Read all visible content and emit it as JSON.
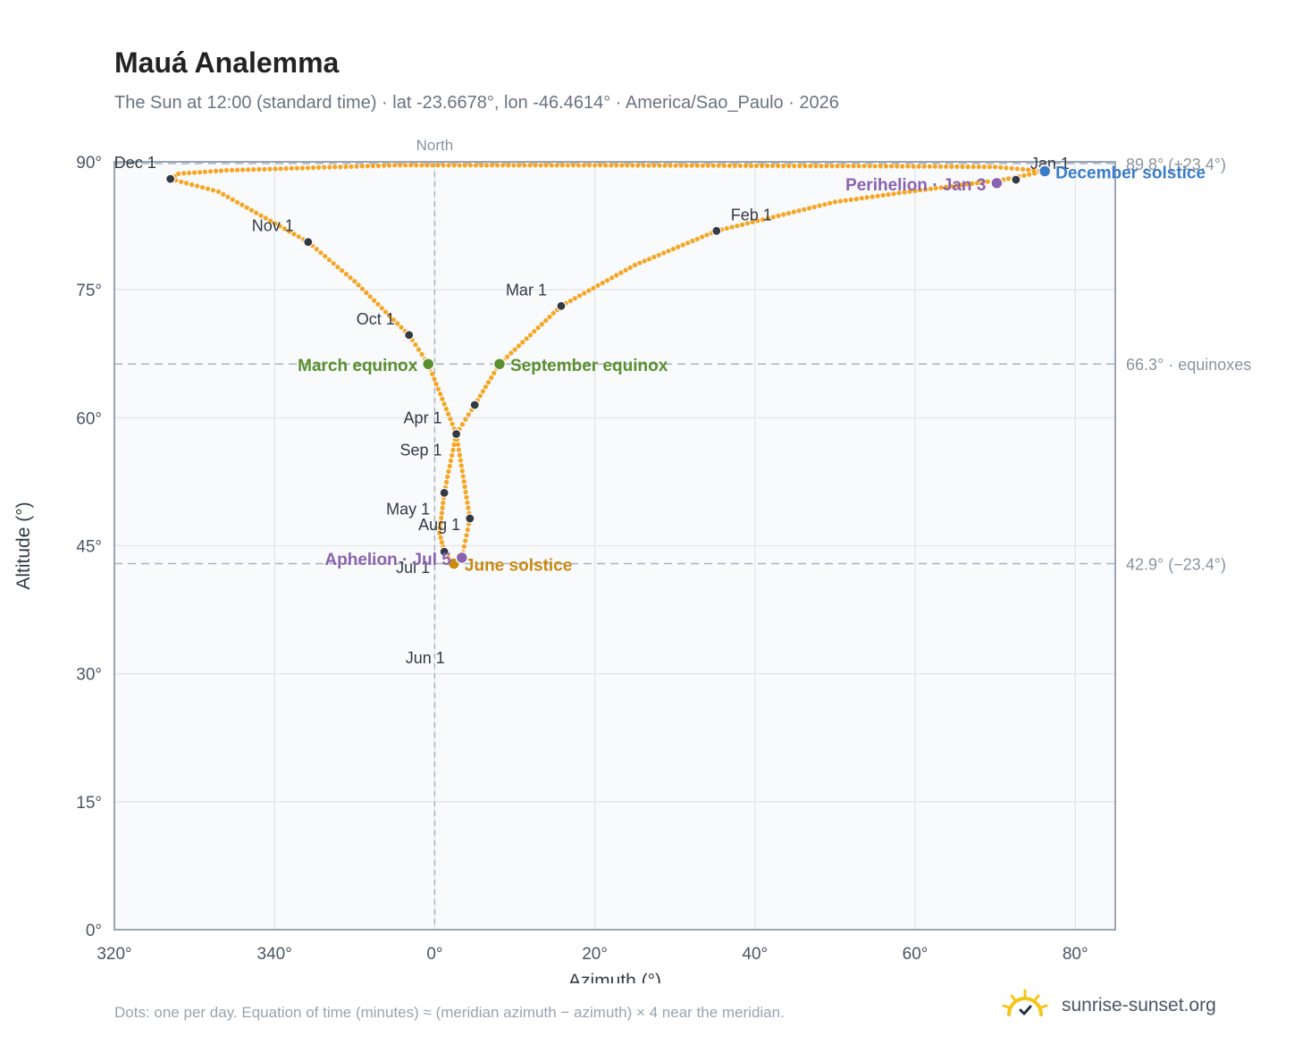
{
  "header": {
    "title": "Mauá Analemma",
    "subtitle": "The Sun at 12:00 (standard time) · lat -23.6678°, lon -46.4614° · America/Sao_Paulo · 2026"
  },
  "footer": {
    "note": "Dots: one per day. Equation of time (minutes) ≈ (meridian azimuth − azimuth) × 4 near the meridian.",
    "brand": "sunrise-sunset.org"
  },
  "colors": {
    "analemma": "#f5a623",
    "month_marker": "#333a44",
    "equinox": "#5a8f2e",
    "june_solstice": "#c98a12",
    "december_solstice": "#3a7bc8",
    "apsis": "#8a63b0",
    "brand_sun": "#f5c518"
  },
  "chart_data": {
    "type": "scatter",
    "xlabel": "Azimuth (°)",
    "ylabel": "Altitude (°)",
    "xlim": [
      320,
      85
    ],
    "ylim": [
      0,
      90
    ],
    "x_ticks": [
      "320°",
      "340°",
      "0°",
      "20°",
      "40°",
      "60°",
      "80°"
    ],
    "y_ticks": [
      "0°",
      "15°",
      "30°",
      "45°",
      "60°",
      "75°",
      "90°"
    ],
    "grid": true,
    "north_label": "North",
    "reference_lines": [
      {
        "altitude": 89.8,
        "label": "89.8° (+23.4°)"
      },
      {
        "altitude": 66.3,
        "label": "66.3° · equinoxes"
      },
      {
        "altitude": 42.9,
        "label": "42.9° (−23.4°)"
      }
    ],
    "analemma_path": [
      {
        "az": 76.2,
        "alt": 88.9
      },
      {
        "az": 71.0,
        "alt": 87.9
      },
      {
        "az": 60.0,
        "alt": 86.6
      },
      {
        "az": 50.0,
        "alt": 85.3
      },
      {
        "az": 35.2,
        "alt": 81.9
      },
      {
        "az": 25.0,
        "alt": 77.9
      },
      {
        "az": 15.8,
        "alt": 73.1
      },
      {
        "az": 8.1,
        "alt": 66.3
      },
      {
        "az": 5.0,
        "alt": 61.5
      },
      {
        "az": 2.7,
        "alt": 58.1
      },
      {
        "az": 1.2,
        "alt": 51.2
      },
      {
        "az": 0.6,
        "alt": 46.5
      },
      {
        "az": 1.2,
        "alt": 44.3
      },
      {
        "az": 2.4,
        "alt": 42.9
      },
      {
        "az": 3.4,
        "alt": 43.6
      },
      {
        "az": 4.4,
        "alt": 48.2
      },
      {
        "az": 2.7,
        "alt": 58.1
      },
      {
        "az": -0.8,
        "alt": 66.3
      },
      {
        "az": -3.2,
        "alt": 69.7
      },
      {
        "az": -10.0,
        "alt": 76.0
      },
      {
        "az": -15.8,
        "alt": 80.6
      },
      {
        "az": -27.0,
        "alt": 86.5
      },
      {
        "az": -33.0,
        "alt": 88.0
      },
      {
        "az": -32.0,
        "alt": 88.6
      },
      {
        "az": -26.0,
        "alt": 89.0
      },
      {
        "az": -5.0,
        "alt": 89.6
      },
      {
        "az": 20.0,
        "alt": 89.6
      },
      {
        "az": 55.0,
        "alt": 89.5
      },
      {
        "az": 70.0,
        "alt": 89.4
      },
      {
        "az": 76.2,
        "alt": 88.9
      }
    ],
    "month_markers": [
      {
        "label": "Jan 1",
        "az": 72.6,
        "alt": 87.9,
        "label_pos": "top-right"
      },
      {
        "label": "Feb 1",
        "az": 35.2,
        "alt": 81.9,
        "label_pos": "top-right"
      },
      {
        "label": "Mar 1",
        "az": 15.8,
        "alt": 73.1,
        "label_pos": "top-left"
      },
      {
        "label": "Apr 1",
        "az": 2.7,
        "alt": 58.1,
        "label_pos": "top-left"
      },
      {
        "label": "May 1",
        "az": 1.2,
        "alt": 51.2,
        "label_pos": "bottom-left"
      },
      {
        "label": "Jun 1",
        "az": 4.4,
        "alt": 48.2,
        "label_pos": "below-left-far"
      },
      {
        "label": "Jul 1",
        "az": 1.2,
        "alt": 44.3,
        "label_pos": "bottom-left"
      },
      {
        "label": "Aug 1",
        "az": 5.0,
        "alt": 61.5,
        "label_pos": "far-below-left"
      },
      {
        "label": "Sep 1",
        "az": 2.7,
        "alt": 58.1,
        "label_pos": "bottom-left"
      },
      {
        "label": "Oct 1",
        "az": -3.2,
        "alt": 69.7,
        "label_pos": "top-left"
      },
      {
        "label": "Nov 1",
        "az": -15.8,
        "alt": 80.6,
        "label_pos": "top-left"
      },
      {
        "label": "Dec 1",
        "az": -33.0,
        "alt": 88.0,
        "label_pos": "top-left"
      }
    ],
    "events": [
      {
        "label": "March equinox",
        "az": -0.8,
        "alt": 66.3,
        "color_key": "equinox",
        "label_pos": "left"
      },
      {
        "label": "September equinox",
        "az": 8.1,
        "alt": 66.3,
        "color_key": "equinox",
        "label_pos": "right"
      },
      {
        "label": "June solstice",
        "az": 2.4,
        "alt": 42.9,
        "color_key": "june_solstice",
        "label_pos": "right"
      },
      {
        "label": "December solstice",
        "az": 76.2,
        "alt": 88.9,
        "color_key": "december_solstice",
        "label_pos": "right"
      },
      {
        "label": "Perihelion · Jan 3",
        "az": 70.2,
        "alt": 87.5,
        "color_key": "apsis",
        "label_pos": "left"
      },
      {
        "label": "Aphelion · Jul 5",
        "az": 3.4,
        "alt": 43.6,
        "color_key": "apsis",
        "label_pos": "left"
      }
    ]
  }
}
